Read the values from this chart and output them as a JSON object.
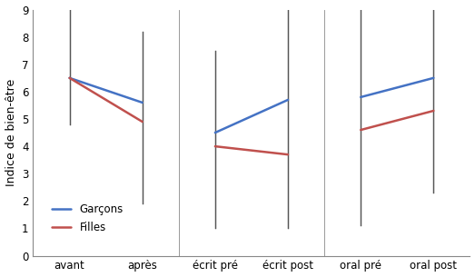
{
  "segments": [
    {
      "x": [
        0,
        1
      ],
      "garcons": [
        6.5,
        5.6
      ],
      "filles": [
        6.5,
        4.9
      ]
    },
    {
      "x": [
        2,
        3
      ],
      "garcons": [
        4.5,
        5.7
      ],
      "filles": [
        4.0,
        3.7
      ]
    },
    {
      "x": [
        4,
        5
      ],
      "garcons": [
        5.8,
        6.5
      ],
      "filles": [
        4.6,
        5.3
      ]
    }
  ],
  "errorbars": [
    {
      "x": 0,
      "garcons_up": 9.0,
      "garcons_down": 4.8,
      "filles_up": 9.0,
      "filles_down": 4.8
    },
    {
      "x": 1,
      "garcons_up": 8.2,
      "garcons_down": 1.9,
      "filles_up": 8.2,
      "filles_down": 1.9
    },
    {
      "x": 2,
      "garcons_up": 7.5,
      "garcons_down": 1.0,
      "filles_up": 7.5,
      "filles_down": 1.0
    },
    {
      "x": 3,
      "garcons_up": 9.0,
      "garcons_down": 1.0,
      "filles_up": 9.0,
      "filles_down": 1.0
    },
    {
      "x": 4,
      "garcons_up": 9.0,
      "garcons_down": 1.1,
      "filles_up": 9.0,
      "filles_down": 1.1
    },
    {
      "x": 5,
      "garcons_up": 9.0,
      "garcons_down": 2.3,
      "filles_up": 9.0,
      "filles_down": 2.3
    }
  ],
  "categories": [
    "avant",
    "après",
    "écrit pré",
    "écrit post",
    "oral pré",
    "oral post"
  ],
  "garcons_color": "#4472C4",
  "filles_color": "#C0504D",
  "errbar_color": "#555555",
  "ylabel": "Indice de bien-être",
  "ylim": [
    0,
    9
  ],
  "yticks": [
    0,
    1,
    2,
    3,
    4,
    5,
    6,
    7,
    8,
    9
  ],
  "separators": [
    1.5,
    3.5
  ],
  "legend_garcons": "Garçons",
  "legend_filles": "Filles"
}
